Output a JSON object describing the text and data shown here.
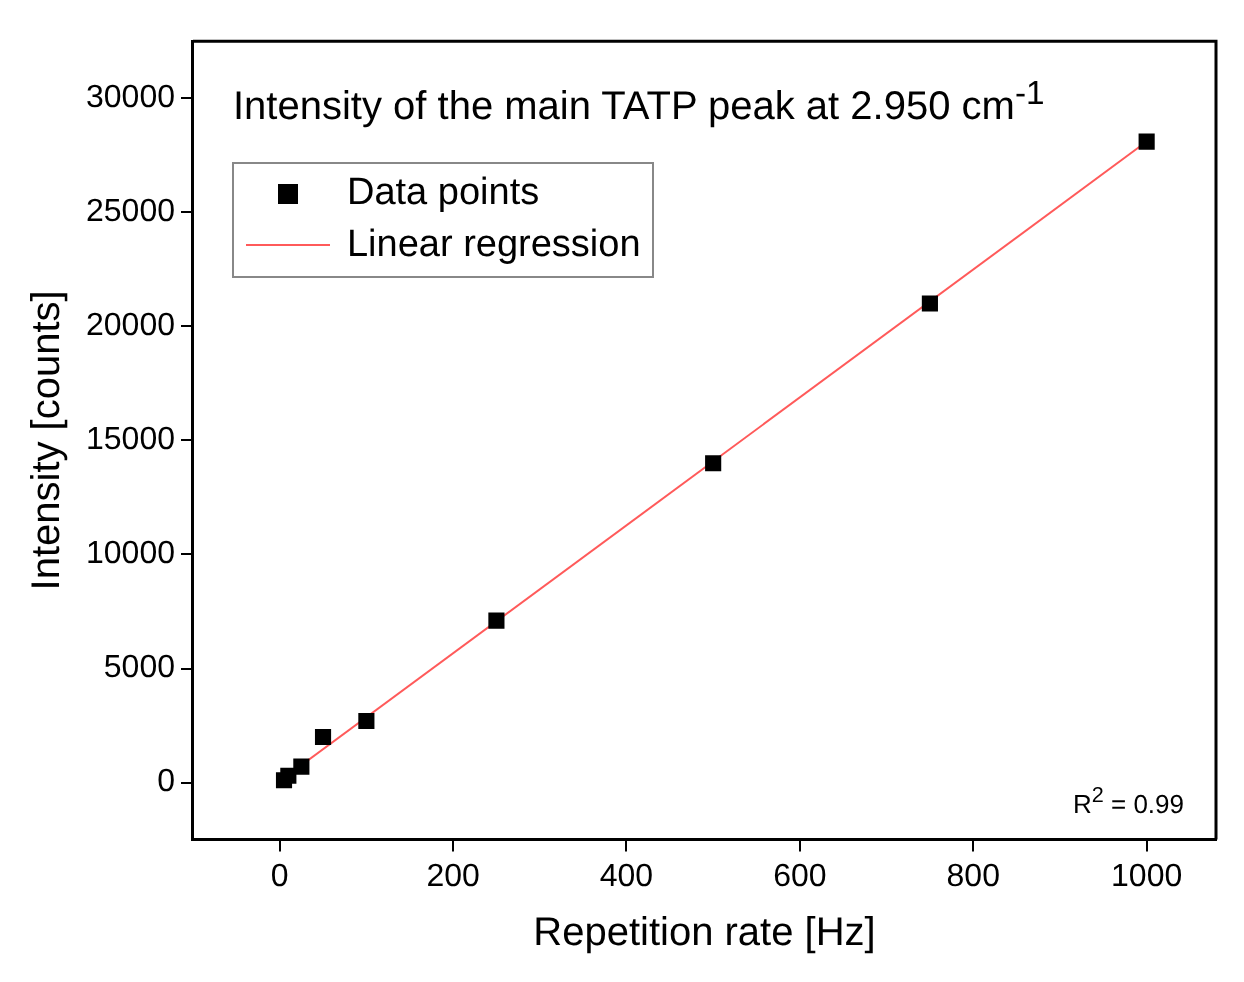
{
  "chart_data": {
    "type": "scatter",
    "title": "Intensity of the main TATP peak at 2.950 cm$^{-1}$",
    "xlabel": "Repetition rate [Hz]",
    "ylabel": "Intensity [counts]",
    "xlim": [
      -100,
      1080
    ],
    "xticks": [
      0,
      200,
      400,
      600,
      800,
      1000
    ],
    "ylim": [
      -2500,
      32500
    ],
    "yticks": [
      0,
      5000,
      10000,
      15000,
      20000,
      25000,
      30000
    ],
    "grid": false,
    "legend": "top left",
    "annotations": [
      "R$^{2}$ = 0.99"
    ],
    "series": [
      {
        "name": "Data points",
        "type": "scatter",
        "marker": "square",
        "color": "#000000",
        "x": [
          5,
          10,
          25,
          50,
          100,
          250,
          500,
          750,
          1000
        ],
        "values": [
          100,
          300,
          700,
          2000,
          2700,
          7100,
          14000,
          21000,
          28100
        ]
      },
      {
        "name": "Linear regression",
        "type": "line",
        "marker": "none",
        "color": "#ff5a5a",
        "line_style": "solid",
        "x": [
          5,
          1000
        ],
        "values": [
          200,
          28100
        ]
      }
    ]
  }
}
